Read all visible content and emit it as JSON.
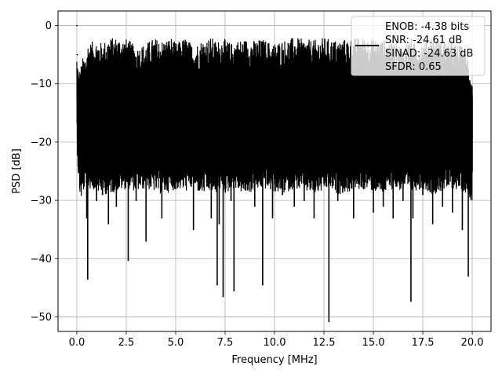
{
  "chart_data": {
    "type": "line",
    "title": "",
    "xlabel": "Frequency [MHz]",
    "ylabel": "PSD [dB]",
    "xlim": [
      -0.95,
      20.95
    ],
    "ylim": [
      -52.5,
      2.5
    ],
    "xticks": [
      0.0,
      2.5,
      5.0,
      7.5,
      10.0,
      12.5,
      15.0,
      17.5,
      20.0
    ],
    "xtick_labels": [
      "0.0",
      "2.5",
      "5.0",
      "7.5",
      "10.0",
      "12.5",
      "15.0",
      "17.5",
      "20.0"
    ],
    "yticks": [
      0,
      -10,
      -20,
      -30,
      -40,
      -50
    ],
    "ytick_labels": [
      "0",
      "−10",
      "−20",
      "−30",
      "−40",
      "−50"
    ],
    "grid": true,
    "legend_position": "top-right",
    "legend_lines": [
      "ENOB: -4.38 bits",
      "SNR: -24.61 dB",
      "SINAD: -24.63 dB",
      "SFDR: 0.65"
    ],
    "series": [
      {
        "color": "#000000",
        "style": "dense noise PSD trace",
        "x": [
          0.0,
          0.02,
          0.05,
          0.1,
          0.2,
          0.3,
          0.5,
          0.55,
          1.0,
          1.3,
          1.6,
          2.0,
          2.6,
          3.0,
          3.5,
          3.9,
          4.3,
          4.8,
          5.0,
          5.5,
          5.9,
          6.3,
          6.8,
          7.0,
          7.1,
          7.2,
          7.4,
          7.8,
          7.95,
          8.5,
          9.0,
          9.4,
          9.9,
          10.4,
          11.0,
          11.5,
          12.0,
          12.5,
          12.75,
          13.2,
          14.0,
          14.5,
          15.0,
          15.5,
          16.0,
          16.5,
          16.9,
          17.0,
          17.5,
          18.0,
          18.5,
          19.0,
          19.5,
          19.8,
          20.0
        ],
        "y": [
          0.0,
          -5.0,
          -10.0,
          -17.0,
          -22.0,
          -26.0,
          -33.0,
          -43.5,
          -30.0,
          -29.0,
          -34.0,
          -31.0,
          -40.3,
          -30.0,
          -37.0,
          -24.0,
          -33.0,
          -27.0,
          -28.0,
          -26.0,
          -35.0,
          -26.0,
          -33.0,
          -28.0,
          -44.5,
          -34.0,
          -46.5,
          -30.0,
          -45.5,
          -28.0,
          -31.0,
          -44.5,
          -33.0,
          -29.0,
          -31.0,
          -30.0,
          -33.0,
          -27.0,
          -50.8,
          -30.0,
          -33.0,
          -28.0,
          -32.0,
          -31.0,
          -33.0,
          -30.0,
          -47.3,
          -33.0,
          -29.0,
          -34.0,
          -31.0,
          -32.0,
          -35.0,
          -43.0,
          -25.0
        ],
        "band_upper": [
          -7.0,
          -8.5,
          -8.0,
          -10.5,
          -9.3,
          -8.0,
          -7.0,
          -5.5,
          -5.0,
          -5.5,
          -4.6,
          -4.5,
          -4.8,
          -6.2,
          -5.5,
          -4.6,
          -5.0,
          -4.5,
          -5.5,
          -4.5,
          -6.0,
          -5.0,
          -4.5,
          -5.0,
          -5.5,
          -4.8,
          -4.6,
          -5.5,
          -5.0,
          -4.8,
          -5.0,
          -4.8,
          -5.5,
          -5.0,
          -4.5,
          -4.8,
          -5.0,
          -4.5,
          -4.8,
          -5.0,
          -4.6,
          -4.5,
          -4.8,
          -5.0,
          -5.2,
          -6.0,
          -4.5,
          -5.5,
          -5.2,
          -4.5,
          -5.0,
          -5.3,
          -6.0,
          -7.5,
          -12.0
        ],
        "band_lower": [
          -14.0,
          -18.0,
          -20.0,
          -24.0,
          -26.0,
          -25.0,
          -23.0,
          -24.0,
          -24.5,
          -25.0,
          -25.0,
          -24.5,
          -24.0,
          -24.5,
          -24.0,
          -24.5,
          -25.0,
          -24.5,
          -24.0,
          -24.5,
          -24.0,
          -25.0,
          -24.5,
          -25.0,
          -24.5,
          -24.0,
          -25.0,
          -24.5,
          -24.0,
          -25.0,
          -24.5,
          -24.0,
          -24.5,
          -25.0,
          -24.0,
          -24.5,
          -25.0,
          -24.5,
          -24.0,
          -25.0,
          -24.5,
          -24.0,
          -24.5,
          -25.0,
          -24.0,
          -24.5,
          -25.0,
          -24.5,
          -24.0,
          -25.0,
          -24.5,
          -24.0,
          -24.5,
          -25.0,
          -26.5
        ]
      }
    ]
  }
}
